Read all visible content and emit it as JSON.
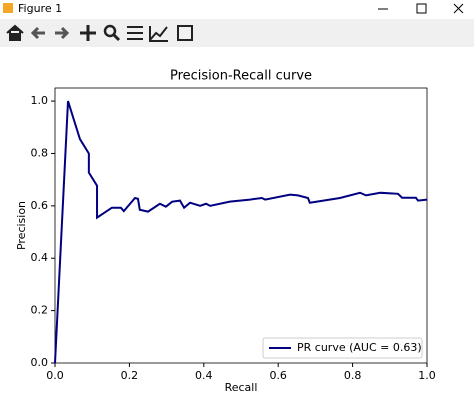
{
  "window": {
    "title": "Figure 1"
  },
  "chart_data": {
    "type": "line",
    "title": "Precision-Recall curve",
    "x_label": "Recall",
    "y_label": "Precision",
    "x": [
      0,
      0.035,
      0.067,
      0.091,
      0.091,
      0.113,
      0.113,
      0.153,
      0.177,
      0.185,
      0.215,
      0.223,
      0.228,
      0.25,
      0.282,
      0.298,
      0.315,
      0.336,
      0.347,
      0.363,
      0.39,
      0.406,
      0.417,
      0.47,
      0.524,
      0.556,
      0.565,
      0.632,
      0.653,
      0.68,
      0.685,
      0.766,
      0.82,
      0.836,
      0.874,
      0.922,
      0.933,
      0.97,
      0.976,
      1.0
    ],
    "series": [
      {
        "name": "PR curve (AUC = 0.63)",
        "color": "#000080",
        "values": [
          0,
          1.0,
          0.855,
          0.8,
          0.727,
          0.677,
          0.555,
          0.593,
          0.593,
          0.58,
          0.63,
          0.627,
          0.585,
          0.578,
          0.608,
          0.597,
          0.616,
          0.62,
          0.593,
          0.612,
          0.6,
          0.608,
          0.6,
          0.616,
          0.624,
          0.63,
          0.624,
          0.643,
          0.64,
          0.63,
          0.612,
          0.63,
          0.65,
          0.64,
          0.65,
          0.646,
          0.631,
          0.631,
          0.62,
          0.624
        ]
      }
    ],
    "xlim": [
      0,
      1
    ],
    "ylim": [
      0,
      1.05
    ],
    "xticks": [
      {
        "value": 0,
        "label": "0.0"
      },
      0.2,
      0.4,
      0.6,
      0.8,
      {
        "value": 1,
        "label": "1.0"
      }
    ],
    "yticks": [
      {
        "value": 0,
        "label": "0.0"
      },
      0.2,
      0.4,
      0.6,
      0.8,
      {
        "value": 1,
        "label": "1.0"
      }
    ],
    "legend": "lower right"
  }
}
